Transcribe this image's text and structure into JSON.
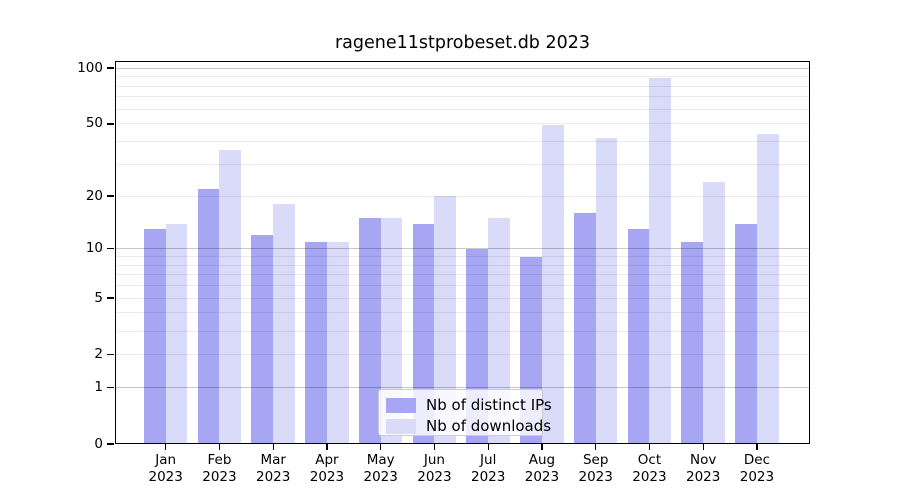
{
  "title": "ragene11stprobeset.db 2023",
  "chart_data": {
    "type": "bar",
    "title": "ragene11stprobeset.db 2023",
    "categories": [
      "Jan",
      "Feb",
      "Mar",
      "Apr",
      "May",
      "Jun",
      "Jul",
      "Aug",
      "Sep",
      "Oct",
      "Nov",
      "Dec"
    ],
    "x_year": "2023",
    "series": [
      {
        "name": "Nb of distinct IPs",
        "color": "#a6a6f2",
        "values": [
          13,
          22,
          12,
          11,
          15,
          14,
          10,
          9,
          16,
          13,
          11,
          14
        ]
      },
      {
        "name": "Nb of downloads",
        "color": "#dadaf9",
        "values": [
          14,
          36,
          18,
          11,
          15,
          20,
          15,
          49,
          42,
          89,
          24,
          44
        ]
      }
    ],
    "y_scale": "log10(1+v)",
    "ylim": [
      0,
      109
    ],
    "y_ticks": [
      0,
      1,
      2,
      5,
      10,
      20,
      50,
      100
    ],
    "grid_major": [
      1,
      10,
      100
    ],
    "grid_minor": [
      2,
      3,
      4,
      5,
      6,
      7,
      8,
      9,
      20,
      30,
      40,
      50,
      60,
      70,
      80,
      90
    ],
    "legend_position": "inside-bottom-center",
    "grid": "on"
  }
}
